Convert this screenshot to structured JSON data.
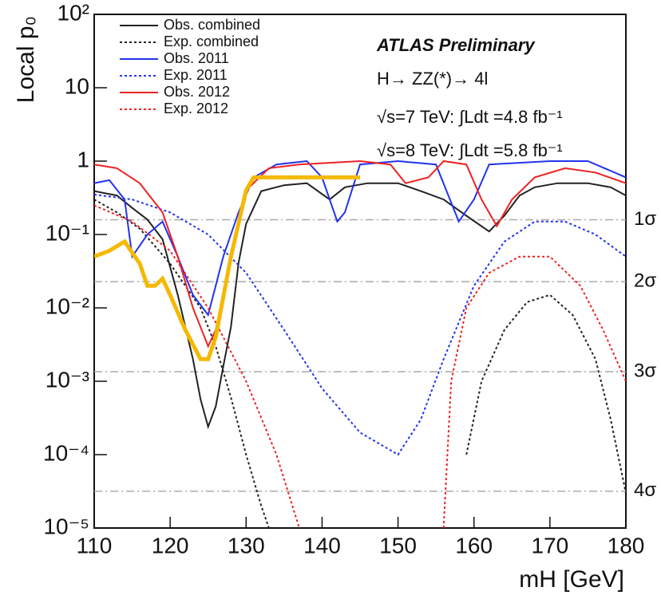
{
  "chart_data": {
    "type": "line",
    "ylabel": "Local p₀",
    "xlabel": "mH [GeV]",
    "log_y": true,
    "legend": "upper left",
    "xlim": [
      110,
      180
    ],
    "xticks": [
      110,
      120,
      130,
      140,
      150,
      160,
      170,
      180
    ],
    "ylim": [
      1e-05,
      100
    ],
    "yticks": [
      {
        "value": 100,
        "label": "10²"
      },
      {
        "value": 10,
        "label": "10"
      },
      {
        "value": 1,
        "label": "1"
      },
      {
        "value": 0.1,
        "label": "10⁻¹"
      },
      {
        "value": 0.01,
        "label": "10⁻²"
      },
      {
        "value": 0.001,
        "label": "10⁻³"
      },
      {
        "value": 0.0001,
        "label": "10⁻⁴"
      },
      {
        "value": 1e-05,
        "label": "10⁻⁵"
      }
    ],
    "annotations": [
      "ATLAS Preliminary",
      "H→ ZZ(*)→ 4l",
      "√s=7 TeV: ∫Ldt =4.8 fb⁻¹",
      "√s=8 TeV: ∫Ldt =5.8 fb⁻¹"
    ],
    "sigma_lines": [
      {
        "label": "1σ",
        "value": 0.159
      },
      {
        "label": "2σ",
        "value": 0.0228
      },
      {
        "label": "3σ",
        "value": 0.00135
      },
      {
        "label": "4σ",
        "value": 3.17e-05
      }
    ],
    "series": [
      {
        "name": "Obs. combined",
        "color": "#222222",
        "dash": false,
        "x": [
          110,
          113,
          115,
          117,
          119,
          121,
          123,
          124,
          125,
          126,
          127,
          128,
          129,
          130,
          132,
          135,
          138,
          141,
          143,
          146,
          150,
          153,
          156,
          159,
          162,
          164,
          166,
          168,
          171,
          175,
          178,
          180
        ],
        "values": [
          0.39,
          0.34,
          0.23,
          0.16,
          0.086,
          0.015,
          0.002,
          0.00057,
          0.00024,
          0.00045,
          0.0016,
          0.0055,
          0.041,
          0.14,
          0.39,
          0.47,
          0.5,
          0.3,
          0.44,
          0.5,
          0.5,
          0.39,
          0.3,
          0.18,
          0.11,
          0.18,
          0.34,
          0.44,
          0.5,
          0.5,
          0.44,
          0.34
        ]
      },
      {
        "name": "Exp. combined",
        "color": "#222222",
        "dash": true,
        "x": [
          110,
          113,
          116,
          120,
          124,
          126,
          128,
          130,
          132,
          133,
          158,
          159,
          161,
          164,
          167,
          170,
          173,
          176,
          178,
          180
        ],
        "values": [
          0.3,
          0.2,
          0.12,
          0.04,
          0.01,
          0.003,
          0.0006,
          0.0001,
          2e-05,
          1e-05,
          null,
          0.0001,
          0.001,
          0.005,
          0.012,
          0.015,
          0.008,
          0.002,
          0.0003,
          3e-05
        ]
      },
      {
        "name": "Obs. 2011",
        "color": "#2233ee",
        "dash": false,
        "x": [
          110,
          112,
          114,
          115,
          117,
          119,
          121,
          123,
          125,
          127,
          129,
          131,
          134,
          138,
          140,
          142,
          143,
          145,
          150,
          155,
          158,
          160,
          162,
          170,
          175,
          180
        ],
        "values": [
          0.5,
          0.55,
          0.3,
          0.05,
          0.1,
          0.15,
          0.05,
          0.015,
          0.008,
          0.05,
          0.2,
          0.6,
          0.9,
          1,
          0.6,
          0.15,
          0.2,
          0.9,
          1,
          0.9,
          0.15,
          0.3,
          0.9,
          1,
          1,
          0.6
        ]
      },
      {
        "name": "Exp. 2011",
        "color": "#2233ee",
        "dash": true,
        "x": [
          110,
          115,
          120,
          125,
          130,
          135,
          140,
          145,
          150,
          153,
          156,
          160,
          164,
          168,
          172,
          176,
          180
        ],
        "values": [
          0.35,
          0.3,
          0.2,
          0.1,
          0.03,
          0.005,
          0.0008,
          0.0002,
          0.0001,
          0.0003,
          0.002,
          0.02,
          0.08,
          0.15,
          0.15,
          0.1,
          0.05
        ]
      },
      {
        "name": "Obs. 2012",
        "color": "#ee2222",
        "dash": false,
        "x": [
          110,
          113,
          116,
          119,
          121,
          123,
          125,
          126,
          128,
          130,
          133,
          137,
          145,
          149,
          151,
          154,
          156,
          159,
          161,
          163,
          165,
          168,
          172,
          176,
          180
        ],
        "values": [
          0.9,
          0.8,
          0.5,
          0.2,
          0.05,
          0.01,
          0.003,
          0.005,
          0.05,
          0.4,
          0.8,
          0.9,
          1,
          0.9,
          0.5,
          0.6,
          1,
          0.9,
          0.3,
          0.13,
          0.3,
          0.6,
          0.8,
          0.7,
          0.5
        ]
      },
      {
        "name": "Exp. 2012",
        "color": "#ee2222",
        "dash": true,
        "x": [
          110,
          115,
          120,
          125,
          130,
          134,
          137,
          150,
          156,
          157,
          159,
          162,
          166,
          170,
          174,
          177,
          180
        ],
        "values": [
          0.25,
          0.15,
          0.06,
          0.01,
          0.001,
          0.0001,
          1e-05,
          null,
          1e-05,
          0.001,
          0.01,
          0.03,
          0.05,
          0.05,
          0.02,
          0.005,
          0.001
        ]
      },
      {
        "color": "#f5b800",
        "dash": false,
        "width": 5,
        "x": [
          110,
          112,
          114,
          116,
          117,
          118,
          119,
          120,
          122,
          124,
          125,
          126,
          128,
          130,
          131,
          145
        ],
        "values": [
          0.05,
          0.06,
          0.08,
          0.04,
          0.02,
          0.02,
          0.025,
          0.015,
          0.005,
          0.002,
          0.002,
          0.004,
          0.05,
          0.4,
          0.6,
          0.6
        ]
      }
    ]
  }
}
